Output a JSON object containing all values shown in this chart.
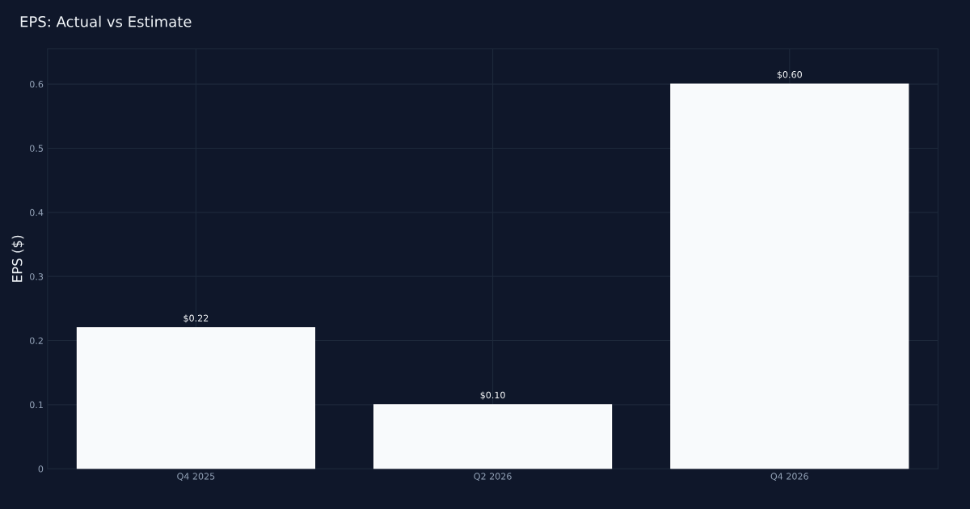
{
  "chart_data": {
    "type": "bar",
    "title": "EPS: Actual vs Estimate",
    "ylabel": "EPS ($)",
    "categories": [
      "Q4 2025",
      "Q2 2026",
      "Q4 2026"
    ],
    "values": [
      0.22,
      0.1,
      0.6
    ],
    "value_labels": [
      "$0.22",
      "$0.10",
      "$0.60"
    ],
    "color": "#f8fafc",
    "ylim": [
      0,
      0.655
    ],
    "yticks": [
      0,
      0.1,
      0.2,
      0.3,
      0.4,
      0.5,
      0.6
    ],
    "grid": true,
    "legend": false
  }
}
